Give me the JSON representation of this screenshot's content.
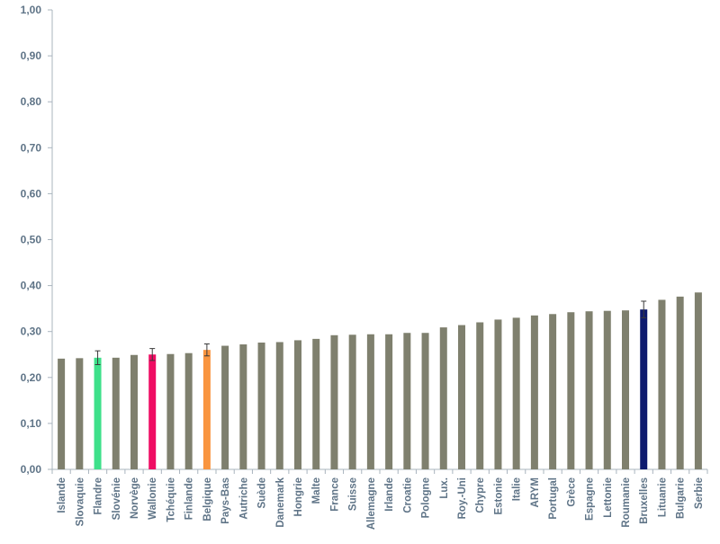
{
  "chart_data": {
    "type": "bar",
    "title": "",
    "xlabel": "",
    "ylabel": "",
    "ylim": [
      0,
      1.0
    ],
    "yticks": [
      "0,00",
      "0,10",
      "0,20",
      "0,30",
      "0,40",
      "0,50",
      "0,60",
      "0,70",
      "0,80",
      "0,90",
      "1,00"
    ],
    "grid": false,
    "legend": "none",
    "default_color": "#7f806e",
    "categories": [
      "Islande",
      "Slovaquie",
      "Flandre",
      "Slovénie",
      "Norvège",
      "Wallonie",
      "Tchéquie",
      "Finlande",
      "Belgique",
      "Pays-Bas",
      "Autriche",
      "Suède",
      "Danemark",
      "Hongrie",
      "Malte",
      "France",
      "Suisse",
      "Allemagne",
      "Irlande",
      "Croatie",
      "Pologne",
      "Lux.",
      "Roy.-Uni",
      "Chypre",
      "Estonie",
      "Italie",
      "ARYM",
      "Portugal",
      "Grèce",
      "Espagne",
      "Lettonie",
      "Roumanie",
      "Bruxelles",
      "Lituanie",
      "Bulgarie",
      "Serbie"
    ],
    "values": [
      0.241,
      0.242,
      0.243,
      0.243,
      0.249,
      0.25,
      0.251,
      0.253,
      0.26,
      0.269,
      0.272,
      0.276,
      0.277,
      0.281,
      0.284,
      0.292,
      0.293,
      0.294,
      0.294,
      0.297,
      0.297,
      0.309,
      0.314,
      0.32,
      0.326,
      0.33,
      0.335,
      0.338,
      0.342,
      0.344,
      0.345,
      0.346,
      0.348,
      0.369,
      0.376,
      0.385
    ],
    "highlights": [
      {
        "category": "Flandre",
        "color": "#3ee08a",
        "error": 0.015
      },
      {
        "category": "Wallonie",
        "color": "#ef0d63",
        "error": 0.013
      },
      {
        "category": "Belgique",
        "color": "#f99540",
        "error": 0.013
      },
      {
        "category": "Bruxelles",
        "color": "#0d1a6e",
        "error": 0.018
      }
    ]
  }
}
